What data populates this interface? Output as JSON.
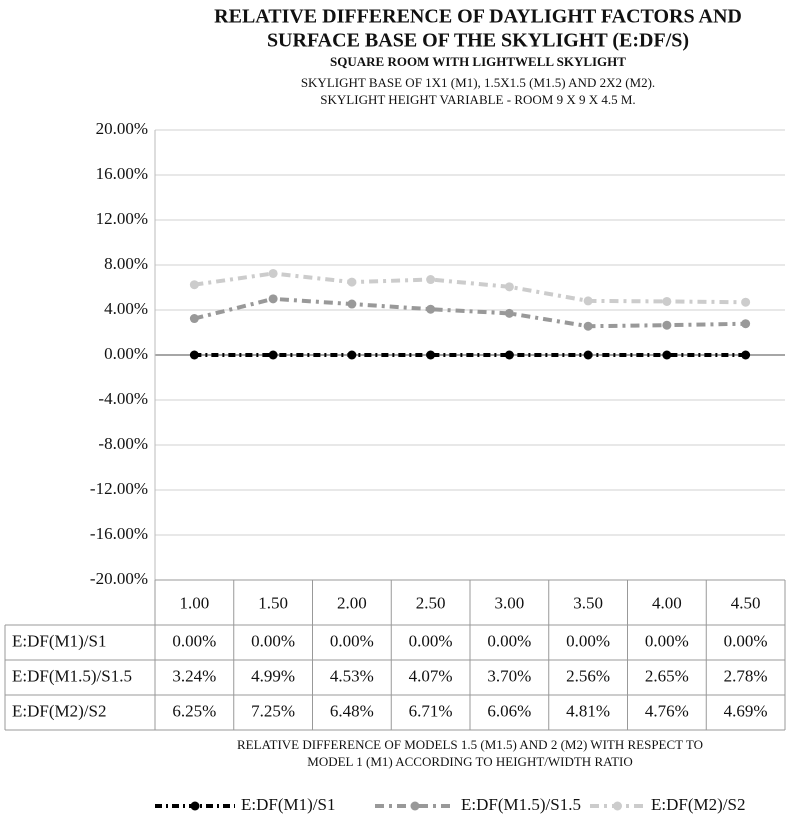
{
  "chart_data": {
    "type": "line",
    "title": [
      "RELATIVE DIFFERENCE OF DAYLIGHT FACTORS AND",
      "SURFACE BASE OF THE SKYLIGHT (E:DF/S)"
    ],
    "subtitle": "SQUARE ROOM WITH LIGHTWELL SKYLIGHT",
    "description": [
      "SKYLIGHT BASE OF 1X1 (M1), 1.5X1.5 (M1.5) AND 2X2 (M2).",
      "SKYLIGHT HEIGHT VARIABLE - ROOM 9 X 9 X 4.5 M."
    ],
    "x_label": [
      "RELATIVE DIFFERENCE OF MODELS 1.5 (M1.5) AND 2 (M2) WITH RESPECT TO",
      "MODEL 1 (M1) ACCORDING TO HEIGHT/WIDTH RATIO"
    ],
    "categories": [
      "1.00",
      "1.50",
      "2.00",
      "2.50",
      "3.00",
      "3.50",
      "4.00",
      "4.50"
    ],
    "series": [
      {
        "name": "E:DF(M1)/S1",
        "color": "#000000",
        "values": [
          0,
          0,
          0,
          0,
          0,
          0,
          0,
          0
        ],
        "value_labels": [
          "0.00%",
          "0.00%",
          "0.00%",
          "0.00%",
          "0.00%",
          "0.00%",
          "0.00%",
          "0.00%"
        ]
      },
      {
        "name": "E:DF(M1.5)/S1.5",
        "color": "#999999",
        "values": [
          3.24,
          4.99,
          4.53,
          4.07,
          3.7,
          2.56,
          2.65,
          2.78
        ],
        "value_labels": [
          "3.24%",
          "4.99%",
          "4.53%",
          "4.07%",
          "3.70%",
          "2.56%",
          "2.65%",
          "2.78%"
        ]
      },
      {
        "name": "E:DF(M2)/S2",
        "color": "#cccccc",
        "values": [
          6.25,
          7.25,
          6.48,
          6.71,
          6.06,
          4.81,
          4.76,
          4.69
        ],
        "value_labels": [
          "6.25%",
          "7.25%",
          "6.48%",
          "6.71%",
          "6.06%",
          "4.81%",
          "4.76%",
          "4.69%"
        ]
      }
    ],
    "ylim": [
      -20,
      20
    ],
    "yticks": [
      {
        "value": -20,
        "label": "-20.00%"
      },
      {
        "value": -16,
        "label": "-16.00%"
      },
      {
        "value": -12,
        "label": "-12.00%"
      },
      {
        "value": -8,
        "label": "-8.00%"
      },
      {
        "value": -4,
        "label": "-4.00%"
      },
      {
        "value": 0,
        "label": "0.00%"
      },
      {
        "value": 4,
        "label": "4.00%"
      },
      {
        "value": 8,
        "label": "8.00%"
      },
      {
        "value": 12,
        "label": "12.00%"
      },
      {
        "value": 16,
        "label": "16.00%"
      },
      {
        "value": 20,
        "label": "20.00%"
      }
    ],
    "grid": true,
    "legend": "bottom"
  }
}
